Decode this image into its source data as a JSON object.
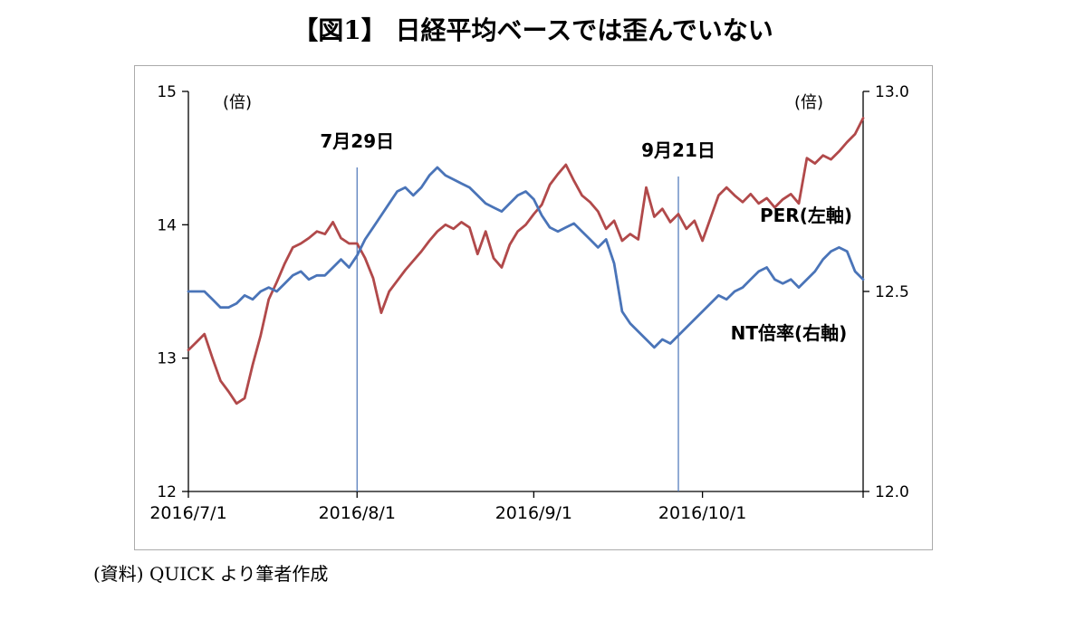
{
  "source": "(資料) QUICK より筆者作成",
  "chart_data": {
    "type": "line",
    "title": "【図1】 日経平均ベースでは歪んでいない",
    "left_axis": {
      "unit": "(倍)",
      "min": 12,
      "max": 15,
      "ticks": [
        15,
        14,
        13,
        12
      ],
      "tick_labels": [
        "15",
        "14",
        "13",
        "12"
      ]
    },
    "right_axis": {
      "unit": "(倍)",
      "min": 12.0,
      "max": 13.0,
      "ticks": [
        13.0,
        12.5,
        12.0
      ],
      "tick_labels": [
        "13.0",
        "12.5",
        "12.0"
      ]
    },
    "x_ticks": [
      "2016/7/1",
      "2016/8/1",
      "2016/9/1",
      "2016/10/1"
    ],
    "x_tick_indices": [
      0,
      21,
      43,
      64
    ],
    "annotations": [
      {
        "label": "7月29日",
        "index": 21
      },
      {
        "label": "9月21日",
        "index": 61
      }
    ],
    "annotation_line_color": "#4a74b8",
    "series": [
      {
        "name": "PER(左軸)",
        "axis": "left",
        "color": "#b1494a",
        "values": [
          13.06,
          13.12,
          13.18,
          13.0,
          12.83,
          12.75,
          12.66,
          12.7,
          12.95,
          13.17,
          13.44,
          13.57,
          13.71,
          13.83,
          13.86,
          13.9,
          13.95,
          13.93,
          14.02,
          13.9,
          13.86,
          13.86,
          13.75,
          13.6,
          13.34,
          13.5,
          13.58,
          13.66,
          13.73,
          13.8,
          13.88,
          13.95,
          14.0,
          13.97,
          14.02,
          13.98,
          13.78,
          13.95,
          13.75,
          13.68,
          13.85,
          13.95,
          14.0,
          14.08,
          14.15,
          14.3,
          14.38,
          14.45,
          14.33,
          14.22,
          14.17,
          14.1,
          13.97,
          14.03,
          13.88,
          13.93,
          13.89,
          14.28,
          14.06,
          14.12,
          14.02,
          14.08,
          13.97,
          14.03,
          13.88,
          14.05,
          14.22,
          14.28,
          14.22,
          14.17,
          14.23,
          14.16,
          14.2,
          14.13,
          14.19,
          14.23,
          14.16,
          14.5,
          14.46,
          14.52,
          14.49,
          14.55,
          14.62,
          14.68,
          14.8
        ]
      },
      {
        "name": "NT倍率(右軸)",
        "axis": "right",
        "color": "#4a74b8",
        "values": [
          12.5,
          12.5,
          12.5,
          12.48,
          12.46,
          12.46,
          12.47,
          12.49,
          12.48,
          12.5,
          12.51,
          12.5,
          12.52,
          12.54,
          12.55,
          12.53,
          12.54,
          12.54,
          12.56,
          12.58,
          12.56,
          12.59,
          12.63,
          12.66,
          12.69,
          12.72,
          12.75,
          12.76,
          12.74,
          12.76,
          12.79,
          12.81,
          12.79,
          12.78,
          12.77,
          12.76,
          12.74,
          12.72,
          12.71,
          12.7,
          12.72,
          12.74,
          12.75,
          12.73,
          12.69,
          12.66,
          12.65,
          12.66,
          12.67,
          12.65,
          12.63,
          12.61,
          12.63,
          12.57,
          12.45,
          12.42,
          12.4,
          12.38,
          12.36,
          12.38,
          12.37,
          12.39,
          12.41,
          12.43,
          12.45,
          12.47,
          12.49,
          12.48,
          12.5,
          12.51,
          12.53,
          12.55,
          12.56,
          12.53,
          12.52,
          12.53,
          12.51,
          12.53,
          12.55,
          12.58,
          12.6,
          12.61,
          12.6,
          12.55,
          12.53
        ]
      }
    ]
  }
}
